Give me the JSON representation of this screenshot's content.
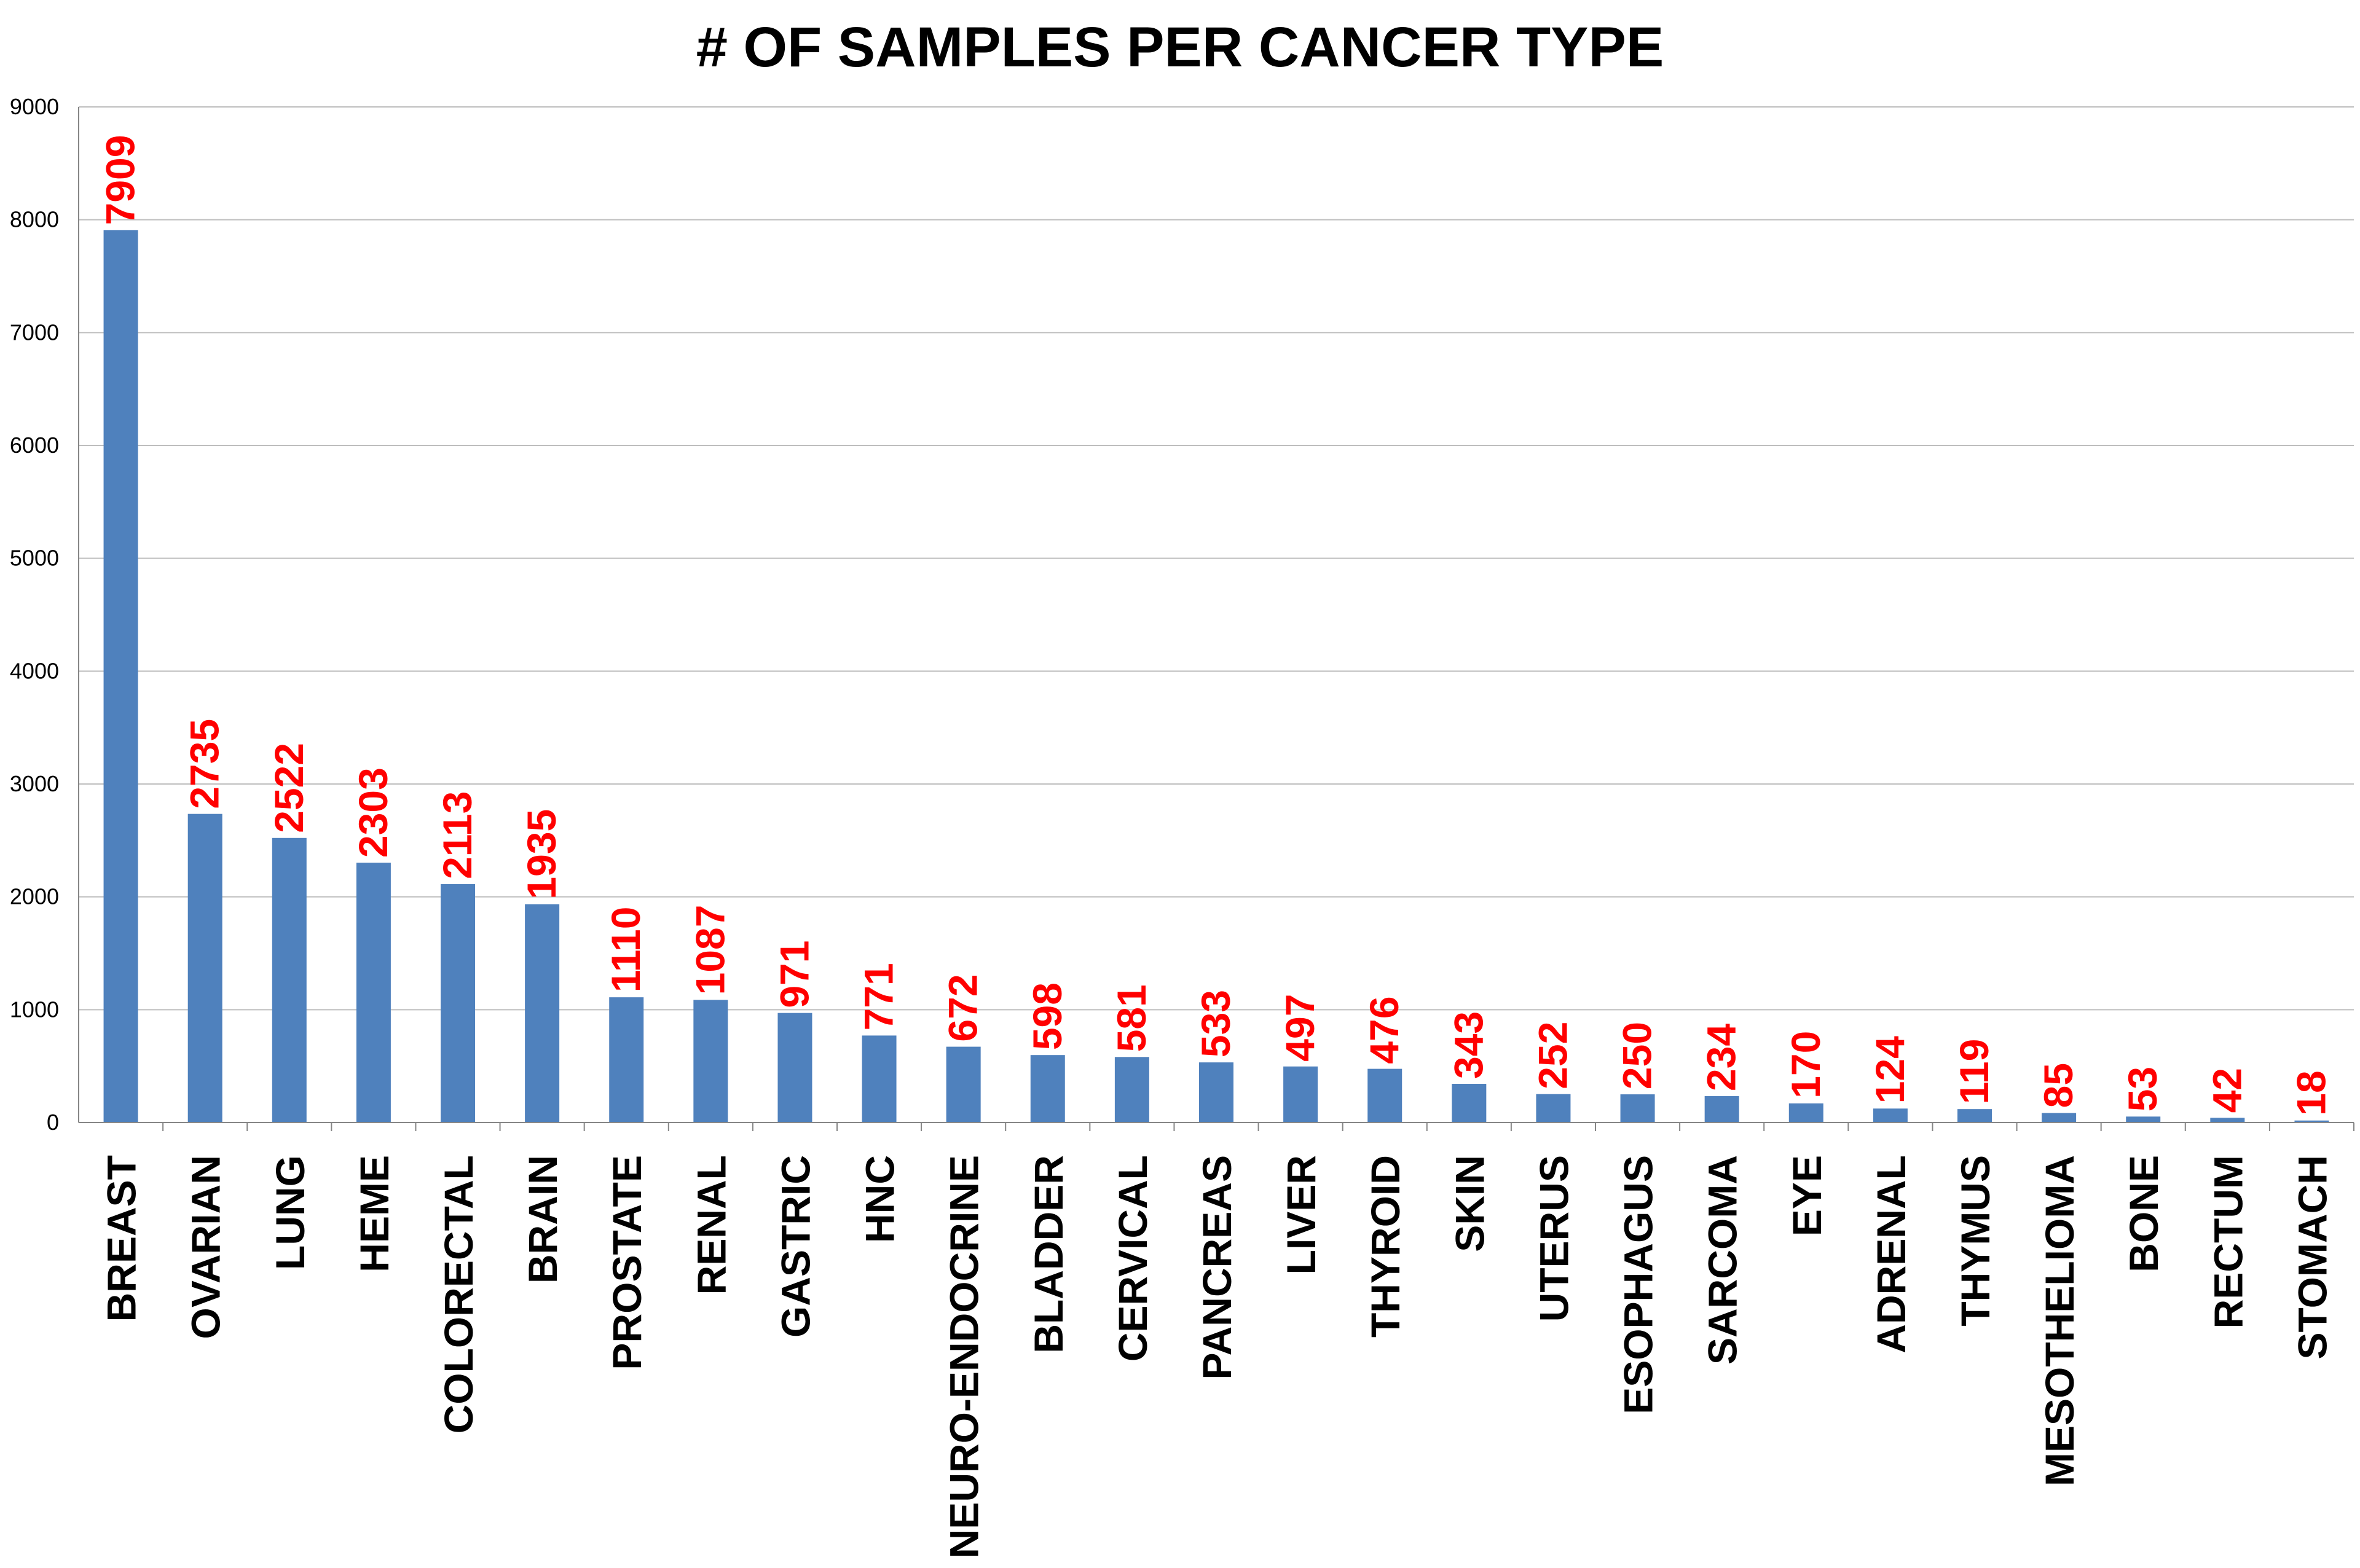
{
  "chart_data": {
    "type": "bar",
    "title": "# OF SAMPLES PER CANCER TYPE",
    "xlabel": "",
    "ylabel": "",
    "ylim": [
      0,
      9000
    ],
    "y_ticks": [
      "0",
      "1000",
      "2000",
      "3000",
      "4000",
      "5000",
      "6000",
      "7000",
      "8000",
      "9000"
    ],
    "grid": true,
    "legend": "none",
    "bar_color": "#4F81BD",
    "label_color": "#FF0000",
    "categories": [
      "BREAST",
      "OVARIAN",
      "LUNG",
      "HEME",
      "COLORECTAL",
      "BRAIN",
      "PROSTATE",
      "RENAL",
      "GASTRIC",
      "HNC",
      "NEURO-ENDOCRINE",
      "BLADDER",
      "CERVICAL",
      "PANCREAS",
      "LIVER",
      "THYROID",
      "SKIN",
      "UTERUS",
      "ESOPHAGUS",
      "SARCOMA",
      "EYE",
      "ADRENAL",
      "THYMUS",
      "MESOTHELIOMA",
      "BONE",
      "RECTUM",
      "STOMACH"
    ],
    "values": [
      7909,
      2735,
      2522,
      2303,
      2113,
      1935,
      1110,
      1087,
      971,
      771,
      672,
      598,
      581,
      533,
      497,
      476,
      343,
      252,
      250,
      234,
      170,
      124,
      119,
      85,
      53,
      42,
      18
    ],
    "data_labels": [
      "7909",
      "2735",
      "2522",
      "2303",
      "2113",
      "1935",
      "1110",
      "1087",
      "971",
      "771",
      "672",
      "598",
      "581",
      "533",
      "497",
      "476",
      "343",
      "252",
      "250",
      "234",
      "170",
      "124",
      "119",
      "85",
      "53",
      "42",
      "18"
    ]
  }
}
